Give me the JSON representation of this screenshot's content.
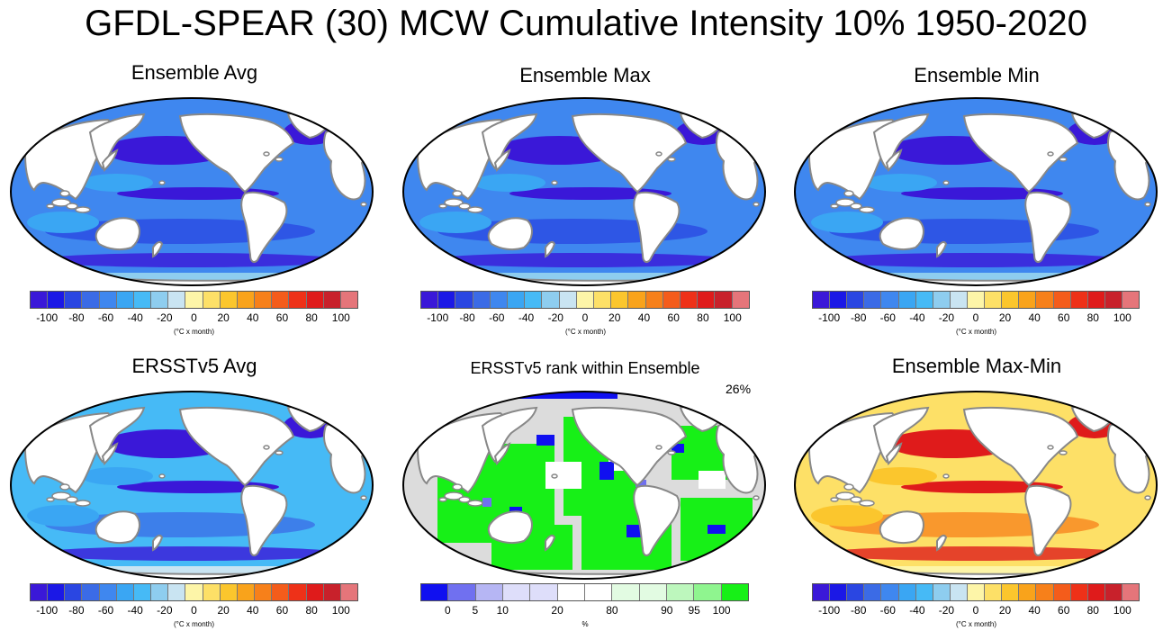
{
  "title": "GFDL-SPEAR (30) MCW Cumulative Intensity 10% 1950-2020",
  "panels": {
    "ens_avg": {
      "title": "Ensemble Avg",
      "palette": "anomaly_cold"
    },
    "ens_max": {
      "title": "Ensemble Max",
      "palette": "anomaly_cold"
    },
    "ens_min": {
      "title": "Ensemble Min",
      "palette": "anomaly_cold"
    },
    "ersst_avg": {
      "title": "ERSSTv5 Avg",
      "palette": "anomaly_cold_weak"
    },
    "rank": {
      "title": "ERSSTv5 rank within Ensemble",
      "percent_label": "26%",
      "palette": "rank"
    },
    "maxmin": {
      "title": "Ensemble Max-Min",
      "palette": "anomaly_warm"
    }
  },
  "colorbars": {
    "anomaly": {
      "colors": [
        "#3a18d8",
        "#1b18e6",
        "#2a46e2",
        "#3b6be6",
        "#3f87ef",
        "#3aa6f3",
        "#46baf6",
        "#8ecdef",
        "#c9e4f2",
        "#fdf5a8",
        "#fde067",
        "#fbc62d",
        "#f9a31b",
        "#f7801a",
        "#f45c1b",
        "#ee3118",
        "#df1b1b",
        "#c8212b",
        "#e5757a"
      ],
      "tick_labels": [
        "-100",
        "-80",
        "-60",
        "-40",
        "-20",
        "0",
        "20",
        "40",
        "60",
        "80",
        "100"
      ],
      "unit_label": "(°C x month)"
    },
    "rank": {
      "colors": [
        "#1010f0",
        "#7070f0",
        "#b6b6f4",
        "#dedefa",
        "#dedefa",
        "#ffffff",
        "#ffffff",
        "#e2fbe2",
        "#e2fbe2",
        "#bdf7bd",
        "#8ff58f",
        "#17f017"
      ],
      "tick_labels": [
        {
          "text": "0",
          "pos": 0.0833
        },
        {
          "text": "5",
          "pos": 0.1667
        },
        {
          "text": "10",
          "pos": 0.25
        },
        {
          "text": "20",
          "pos": 0.4167
        },
        {
          "text": "80",
          "pos": 0.5833
        },
        {
          "text": "90",
          "pos": 0.75
        },
        {
          "text": "95",
          "pos": 0.8333
        },
        {
          "text": "100",
          "pos": 0.9167
        }
      ],
      "unit_label": "%"
    }
  },
  "palettes": {
    "anomaly_cold": {
      "ocean": "#3f87ef",
      "mid": "#3aa6f3",
      "deep": "#2a46e2",
      "deepest": "#3a18d8",
      "light": "#8ecdef"
    },
    "anomaly_cold_weak": {
      "ocean": "#46baf6",
      "mid": "#3aa6f3",
      "deep": "#3b6be6",
      "deepest": "#3a18d8",
      "light": "#c9e4f2"
    },
    "anomaly_warm": {
      "ocean": "#fde067",
      "mid": "#fbc62d",
      "deep": "#f7801a",
      "deepest": "#df1b1b",
      "light": "#fdf5a8"
    },
    "rank": {
      "ocean": "#17f017",
      "mid": "#ffffff",
      "deep": "#1010f0",
      "deepest": "#1010f0",
      "light": "#dcdcdc"
    }
  },
  "colors": {
    "land": "#ffffff",
    "coastline": "#888888",
    "map_border": "#000000",
    "no_data": "#dcdcdc"
  }
}
